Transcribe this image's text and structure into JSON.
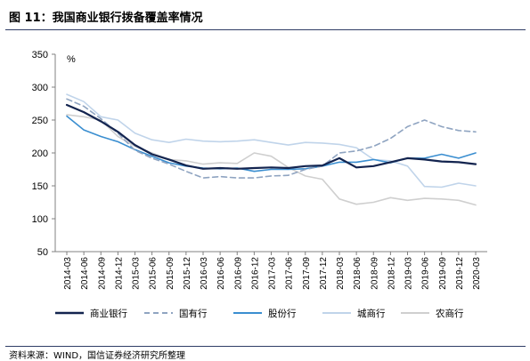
{
  "header": {
    "title": "图 11：我国商业银行拨备覆盖率情况"
  },
  "footer": {
    "source": "资料来源：WIND，国信证券经济研究所整理"
  },
  "chart_data": {
    "type": "line",
    "title": "",
    "unit": "%",
    "ylim": [
      50,
      350
    ],
    "yticks": [
      50,
      100,
      150,
      200,
      250,
      300,
      350
    ],
    "grid": false,
    "legend_position": "bottom",
    "categories": [
      "2014-03",
      "2014-06",
      "2014-09",
      "2014-12",
      "2015-03",
      "2015-06",
      "2015-09",
      "2015-12",
      "2016-03",
      "2016-06",
      "2016-09",
      "2016-12",
      "2017-03",
      "2017-06",
      "2017-09",
      "2017-12",
      "2018-03",
      "2018-06",
      "2018-09",
      "2018-12",
      "2019-03",
      "2019-06",
      "2019-09",
      "2019-12",
      "2020-03"
    ],
    "series": [
      {
        "name": "商业银行",
        "color": "#13244f",
        "dash": "solid",
        "width": 2.2,
        "values": [
          273,
          262,
          248,
          232,
          212,
          198,
          190,
          181,
          176,
          177,
          176,
          177,
          178,
          177,
          180,
          181,
          192,
          178,
          180,
          186,
          192,
          190,
          187,
          186,
          183
        ]
      },
      {
        "name": "国有行",
        "color": "#8fa4c1",
        "dash": "dashed",
        "width": 1.6,
        "values": [
          282,
          271,
          252,
          230,
          204,
          192,
          183,
          172,
          162,
          164,
          162,
          162,
          165,
          166,
          175,
          180,
          200,
          203,
          210,
          222,
          240,
          250,
          240,
          234,
          232
        ]
      },
      {
        "name": "股份行",
        "color": "#3a8ed0",
        "dash": "solid",
        "width": 1.6,
        "values": [
          256,
          235,
          225,
          217,
          205,
          195,
          185,
          180,
          177,
          176,
          177,
          172,
          175,
          175,
          176,
          180,
          186,
          186,
          190,
          185,
          192,
          192,
          198,
          192,
          200
        ]
      },
      {
        "name": "城商行",
        "color": "#c0d4ea",
        "dash": "solid",
        "width": 1.6,
        "values": [
          289,
          278,
          255,
          250,
          230,
          220,
          216,
          221,
          218,
          217,
          218,
          220,
          216,
          212,
          216,
          215,
          213,
          208,
          190,
          188,
          180,
          149,
          148,
          154,
          150
        ]
      },
      {
        "name": "农商行",
        "color": "#cfcfcf",
        "dash": "solid",
        "width": 1.6,
        "values": [
          258,
          255,
          250,
          225,
          210,
          200,
          190,
          188,
          183,
          185,
          184,
          200,
          195,
          178,
          165,
          160,
          130,
          122,
          125,
          132,
          128,
          131,
          130,
          128,
          121
        ]
      }
    ]
  }
}
